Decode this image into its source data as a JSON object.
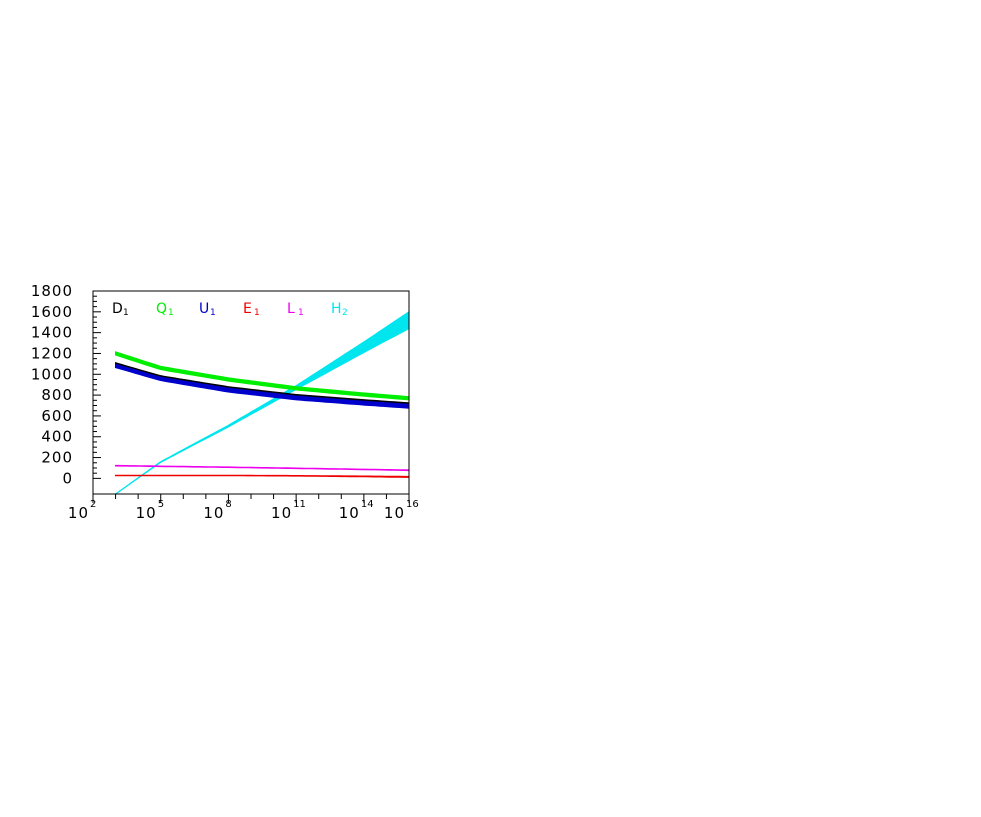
{
  "chart_data": {
    "type": "line",
    "title": "",
    "xlabel": "",
    "ylabel": "",
    "x_scale": "log10",
    "xlim": [
      100,
      1e+16
    ],
    "ylim": [
      -150,
      1800
    ],
    "x_ticks": [
      {
        "base": "10",
        "exp": "2",
        "value": 100
      },
      {
        "base": "10",
        "exp": "5",
        "value": 100000.0
      },
      {
        "base": "10",
        "exp": "8",
        "value": 100000000.0
      },
      {
        "base": "10",
        "exp": "11",
        "value": 100000000000.0
      },
      {
        "base": "10",
        "exp": "14",
        "value": 100000000000000.0
      },
      {
        "base": "10",
        "exp": "16",
        "value": 1e+16
      }
    ],
    "y_ticks": [
      {
        "label": "1800",
        "value": 1800
      },
      {
        "label": "1600",
        "value": 1600
      },
      {
        "label": "1400",
        "value": 1400
      },
      {
        "label": "1200",
        "value": 1200
      },
      {
        "label": "1000",
        "value": 1000
      },
      {
        "label": "800",
        "value": 800
      },
      {
        "label": "600",
        "value": 600
      },
      {
        "label": "400",
        "value": 400
      },
      {
        "label": "200",
        "value": 200
      },
      {
        "label": "0",
        "value": 0
      }
    ],
    "grid": false,
    "legend_position": "top-inside",
    "series": [
      {
        "name": "D",
        "sub": "1",
        "color": "#000000",
        "x": [
          1000,
          100000.0,
          100000000.0,
          100000000000.0,
          100000000000000.0,
          1e+16
        ],
        "upper": [
          1110,
          985,
          880,
          805,
          755,
          725
        ],
        "lower": [
          1075,
          950,
          840,
          765,
          715,
          690
        ]
      },
      {
        "name": "Q",
        "sub": "1",
        "color": "#00ee00",
        "x": [
          1000,
          100000.0,
          100000000.0,
          100000000000.0,
          100000000000000.0,
          1e+16
        ],
        "upper": [
          1215,
          1075,
          965,
          880,
          820,
          785
        ],
        "lower": [
          1185,
          1045,
          935,
          850,
          790,
          755
        ]
      },
      {
        "name": "U",
        "sub": "1",
        "color": "#0000cc",
        "x": [
          1000,
          100000.0,
          100000000.0,
          100000000000.0,
          100000000000000.0,
          1e+16
        ],
        "upper": [
          1095,
          970,
          865,
          790,
          740,
          710
        ],
        "lower": [
          1065,
          940,
          830,
          755,
          705,
          675
        ]
      },
      {
        "name": "E",
        "sub": "1",
        "color": "#ee0000",
        "x": [
          1000,
          100000.0,
          100000000.0,
          100000000000.0,
          100000000000000.0,
          1e+16
        ],
        "upper": [
          30,
          30,
          29,
          27,
          22,
          18
        ],
        "lower": [
          27,
          27,
          26,
          23,
          16,
          10
        ]
      },
      {
        "name": "L",
        "sub": "1",
        "color": "#ee00ee",
        "x": [
          1000,
          100000.0,
          100000000.0,
          100000000000.0,
          100000000000000.0,
          1e+16
        ],
        "upper": [
          124,
          118,
          109,
          99,
          88,
          81
        ],
        "lower": [
          120,
          114,
          105,
          95,
          84,
          76
        ]
      },
      {
        "name": "H",
        "sub": "2",
        "color": "#00e5ee",
        "x": [
          1000,
          100000.0,
          100000000.0,
          100000000000.0,
          100000000000000.0,
          1e+16
        ],
        "upper": [
          -150,
          160,
          510,
          890,
          1310,
          1600
        ],
        "lower": [
          -150,
          155,
          495,
          855,
          1210,
          1440
        ]
      }
    ]
  }
}
